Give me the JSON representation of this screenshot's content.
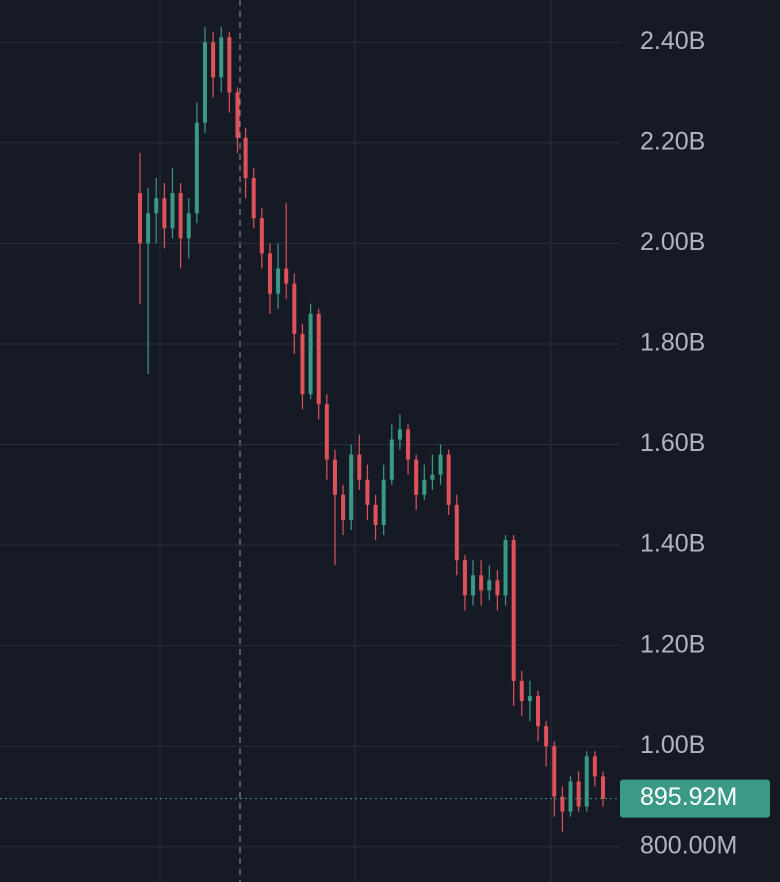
{
  "chart_data": {
    "type": "candlestick",
    "open": [
      2100000000.0,
      2000000000.0,
      2060000000.0,
      2090000000.0,
      2030000000.0,
      2100000000.0,
      2010000000.0,
      2060000000.0,
      2240000000.0,
      2400000000.0,
      2330000000.0,
      2410000000.0,
      2300000000.0,
      2210000000.0,
      2130000000.0,
      2050000000.0,
      1980000000.0,
      1900000000.0,
      1950000000.0,
      1920000000.0,
      1820000000.0,
      1700000000.0,
      1860000000.0,
      1680000000.0,
      1570000000.0,
      1500000000.0,
      1450000000.0,
      1580000000.0,
      1530000000.0,
      1480000000.0,
      1440000000.0,
      1530000000.0,
      1610000000.0,
      1630000000.0,
      1570000000.0,
      1500000000.0,
      1530000000.0,
      1540000000.0,
      1580000000.0,
      1480000000.0,
      1370000000.0,
      1300000000.0,
      1340000000.0,
      1310000000.0,
      1330000000.0,
      1300000000.0,
      1410000000.0,
      1130000000.0,
      1090000000.0,
      1100000000.0,
      1040000000.0,
      1000000000.0,
      900000000.0,
      870000000.0,
      930000000.0,
      880000000.0,
      980000000.0,
      940000000.0
    ],
    "high": [
      2180000000.0,
      2110000000.0,
      2130000000.0,
      2120000000.0,
      2150000000.0,
      2120000000.0,
      2090000000.0,
      2280000000.0,
      2430000000.0,
      2420000000.0,
      2430000000.0,
      2420000000.0,
      2310000000.0,
      2230000000.0,
      2150000000.0,
      2070000000.0,
      2000000000.0,
      2000000000.0,
      2080000000.0,
      1940000000.0,
      1840000000.0,
      1880000000.0,
      1870000000.0,
      1700000000.0,
      1590000000.0,
      1520000000.0,
      1600000000.0,
      1620000000.0,
      1560000000.0,
      1500000000.0,
      1560000000.0,
      1640000000.0,
      1660000000.0,
      1640000000.0,
      1580000000.0,
      1560000000.0,
      1580000000.0,
      1600000000.0,
      1590000000.0,
      1500000000.0,
      1380000000.0,
      1370000000.0,
      1370000000.0,
      1360000000.0,
      1350000000.0,
      1420000000.0,
      1420000000.0,
      1150000000.0,
      1130000000.0,
      1110000000.0,
      1050000000.0,
      1010000000.0,
      920000000.0,
      940000000.0,
      950000000.0,
      990000000.0,
      990000000.0,
      950000000.0
    ],
    "low": [
      1880000000.0,
      1740000000.0,
      2000000000.0,
      1990000000.0,
      2010000000.0,
      1950000000.0,
      1970000000.0,
      2040000000.0,
      2220000000.0,
      2290000000.0,
      2300000000.0,
      2260000000.0,
      2180000000.0,
      2090000000.0,
      2030000000.0,
      1950000000.0,
      1860000000.0,
      1870000000.0,
      1890000000.0,
      1780000000.0,
      1670000000.0,
      1690000000.0,
      1650000000.0,
      1530000000.0,
      1360000000.0,
      1420000000.0,
      1430000000.0,
      1510000000.0,
      1450000000.0,
      1410000000.0,
      1420000000.0,
      1520000000.0,
      1590000000.0,
      1540000000.0,
      1470000000.0,
      1490000000.0,
      1510000000.0,
      1520000000.0,
      1460000000.0,
      1340000000.0,
      1270000000.0,
      1280000000.0,
      1280000000.0,
      1290000000.0,
      1270000000.0,
      1280000000.0,
      1080000000.0,
      1060000000.0,
      1050000000.0,
      1010000000.0,
      960000000.0,
      860000000.0,
      830000000.0,
      860000000.0,
      870000000.0,
      870000000.0,
      920000000.0,
      880000000.0
    ],
    "close": [
      2000000000.0,
      2060000000.0,
      2090000000.0,
      2030000000.0,
      2100000000.0,
      2010000000.0,
      2060000000.0,
      2240000000.0,
      2400000000.0,
      2330000000.0,
      2410000000.0,
      2300000000.0,
      2210000000.0,
      2130000000.0,
      2050000000.0,
      1980000000.0,
      1900000000.0,
      1950000000.0,
      1920000000.0,
      1820000000.0,
      1700000000.0,
      1860000000.0,
      1680000000.0,
      1570000000.0,
      1500000000.0,
      1450000000.0,
      1580000000.0,
      1530000000.0,
      1480000000.0,
      1440000000.0,
      1530000000.0,
      1610000000.0,
      1630000000.0,
      1570000000.0,
      1500000000.0,
      1530000000.0,
      1540000000.0,
      1580000000.0,
      1480000000.0,
      1370000000.0,
      1300000000.0,
      1340000000.0,
      1310000000.0,
      1330000000.0,
      1300000000.0,
      1410000000.0,
      1130000000.0,
      1090000000.0,
      1100000000.0,
      1040000000.0,
      1000000000.0,
      900000000.0,
      870000000.0,
      930000000.0,
      880000000.0,
      980000000.0,
      940000000.0,
      895920000.0
    ],
    "up_color": "#3a9a86",
    "down_color": "#e0525a",
    "ylim": [
      730000000.0,
      2484000000.0
    ],
    "yticks": [
      {
        "value": 800000000.0,
        "label": "800.00M"
      },
      {
        "value": 1000000000.0,
        "label": "1.00B"
      },
      {
        "value": 1200000000.0,
        "label": "1.20B"
      },
      {
        "value": 1400000000.0,
        "label": "1.40B"
      },
      {
        "value": 1600000000.0,
        "label": "1.60B"
      },
      {
        "value": 1800000000.0,
        "label": "1.80B"
      },
      {
        "value": 2000000000.0,
        "label": "2.00B"
      },
      {
        "value": 2200000000.0,
        "label": "2.20B"
      },
      {
        "value": 2400000000.0,
        "label": "2.40B"
      }
    ],
    "grid": true,
    "last_price": {
      "value": 895920000.0,
      "label": "895.92M"
    }
  }
}
